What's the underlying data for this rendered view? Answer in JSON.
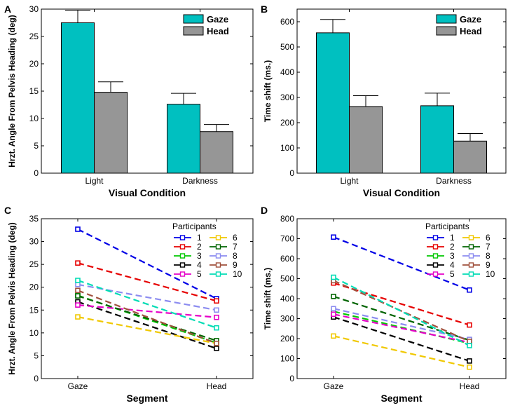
{
  "chart_data": [
    {
      "panel": "A",
      "type": "bar",
      "categories": [
        "Light",
        "Darkness"
      ],
      "series": [
        {
          "name": "Gaze",
          "values": [
            27.5,
            12.6
          ],
          "errors": [
            2.3,
            2.0
          ],
          "color": "#00c0c0"
        },
        {
          "name": "Head",
          "values": [
            14.8,
            7.6
          ],
          "errors": [
            1.9,
            1.3
          ],
          "color": "#969696"
        }
      ],
      "xlabel": "Visual Condition",
      "ylabel": "Hrzt. Angle From Pelvis Heading (deg)",
      "ylim": [
        0,
        30
      ],
      "yticks": [
        "0",
        "5",
        "10",
        "15",
        "20",
        "25",
        "30"
      ],
      "legend": "top-right"
    },
    {
      "panel": "B",
      "type": "bar",
      "categories": [
        "Light",
        "Darkness"
      ],
      "series": [
        {
          "name": "Gaze",
          "values": [
            556,
            267
          ],
          "errors": [
            53,
            50
          ],
          "color": "#00c0c0"
        },
        {
          "name": "Head",
          "values": [
            264,
            127
          ],
          "errors": [
            43,
            30
          ],
          "color": "#969696"
        }
      ],
      "xlabel": "Visual Condition",
      "ylabel": "Time shift (ms.)",
      "ylim": [
        0,
        650
      ],
      "yticks": [
        "0",
        "100",
        "200",
        "300",
        "400",
        "500",
        "600"
      ],
      "legend": "top-right"
    },
    {
      "panel": "C",
      "type": "line",
      "categories": [
        "Gaze",
        "Head"
      ],
      "legend_title": "Participants",
      "series": [
        {
          "name": "1",
          "values": [
            32.7,
            17.5
          ],
          "color": "#0000e6"
        },
        {
          "name": "2",
          "values": [
            25.3,
            17.0
          ],
          "color": "#e60000"
        },
        {
          "name": "3",
          "values": [
            18.2,
            7.8
          ],
          "color": "#00c800"
        },
        {
          "name": "4",
          "values": [
            16.8,
            6.6
          ],
          "color": "#000000"
        },
        {
          "name": "5",
          "values": [
            16.1,
            13.4
          ],
          "color": "#e600c8"
        },
        {
          "name": "6",
          "values": [
            13.5,
            7.7
          ],
          "color": "#f0c800"
        },
        {
          "name": "7",
          "values": [
            18.1,
            8.3
          ],
          "color": "#006400"
        },
        {
          "name": "8",
          "values": [
            20.6,
            15.0
          ],
          "color": "#8c8cf0"
        },
        {
          "name": "9",
          "values": [
            19.3,
            7.7
          ],
          "color": "#a0503c"
        },
        {
          "name": "10",
          "values": [
            21.5,
            11.1
          ],
          "color": "#00dcb4"
        }
      ],
      "xlabel": "Segment",
      "ylabel": "Hrzt. Angle From Pelvis Heading (deg)",
      "ylim": [
        0,
        35
      ],
      "yticks": [
        "0",
        "5",
        "10",
        "15",
        "20",
        "25",
        "30",
        "35"
      ],
      "legend": "top-right"
    },
    {
      "panel": "D",
      "type": "line",
      "categories": [
        "Gaze",
        "Head"
      ],
      "legend_title": "Participants",
      "series": [
        {
          "name": "1",
          "values": [
            708,
            443
          ],
          "color": "#0000e6"
        },
        {
          "name": "2",
          "values": [
            478,
            268
          ],
          "color": "#e60000"
        },
        {
          "name": "3",
          "values": [
            336,
            176
          ],
          "color": "#00c800"
        },
        {
          "name": "4",
          "values": [
            308,
            88
          ],
          "color": "#000000"
        },
        {
          "name": "5",
          "values": [
            322,
            181
          ],
          "color": "#e600c8"
        },
        {
          "name": "6",
          "values": [
            213,
            57
          ],
          "color": "#f0c800"
        },
        {
          "name": "7",
          "values": [
            411,
            192
          ],
          "color": "#006400"
        },
        {
          "name": "8",
          "values": [
            350,
            196
          ],
          "color": "#8c8cf0"
        },
        {
          "name": "9",
          "values": [
            490,
            186
          ],
          "color": "#a0503c"
        },
        {
          "name": "10",
          "values": [
            507,
            165
          ],
          "color": "#00dcb4"
        }
      ],
      "xlabel": "Segment",
      "ylabel": "Time shift (ms.)",
      "ylim": [
        0,
        800
      ],
      "yticks": [
        "0",
        "100",
        "200",
        "300",
        "400",
        "500",
        "600",
        "700",
        "800"
      ],
      "legend": "top-right"
    }
  ]
}
